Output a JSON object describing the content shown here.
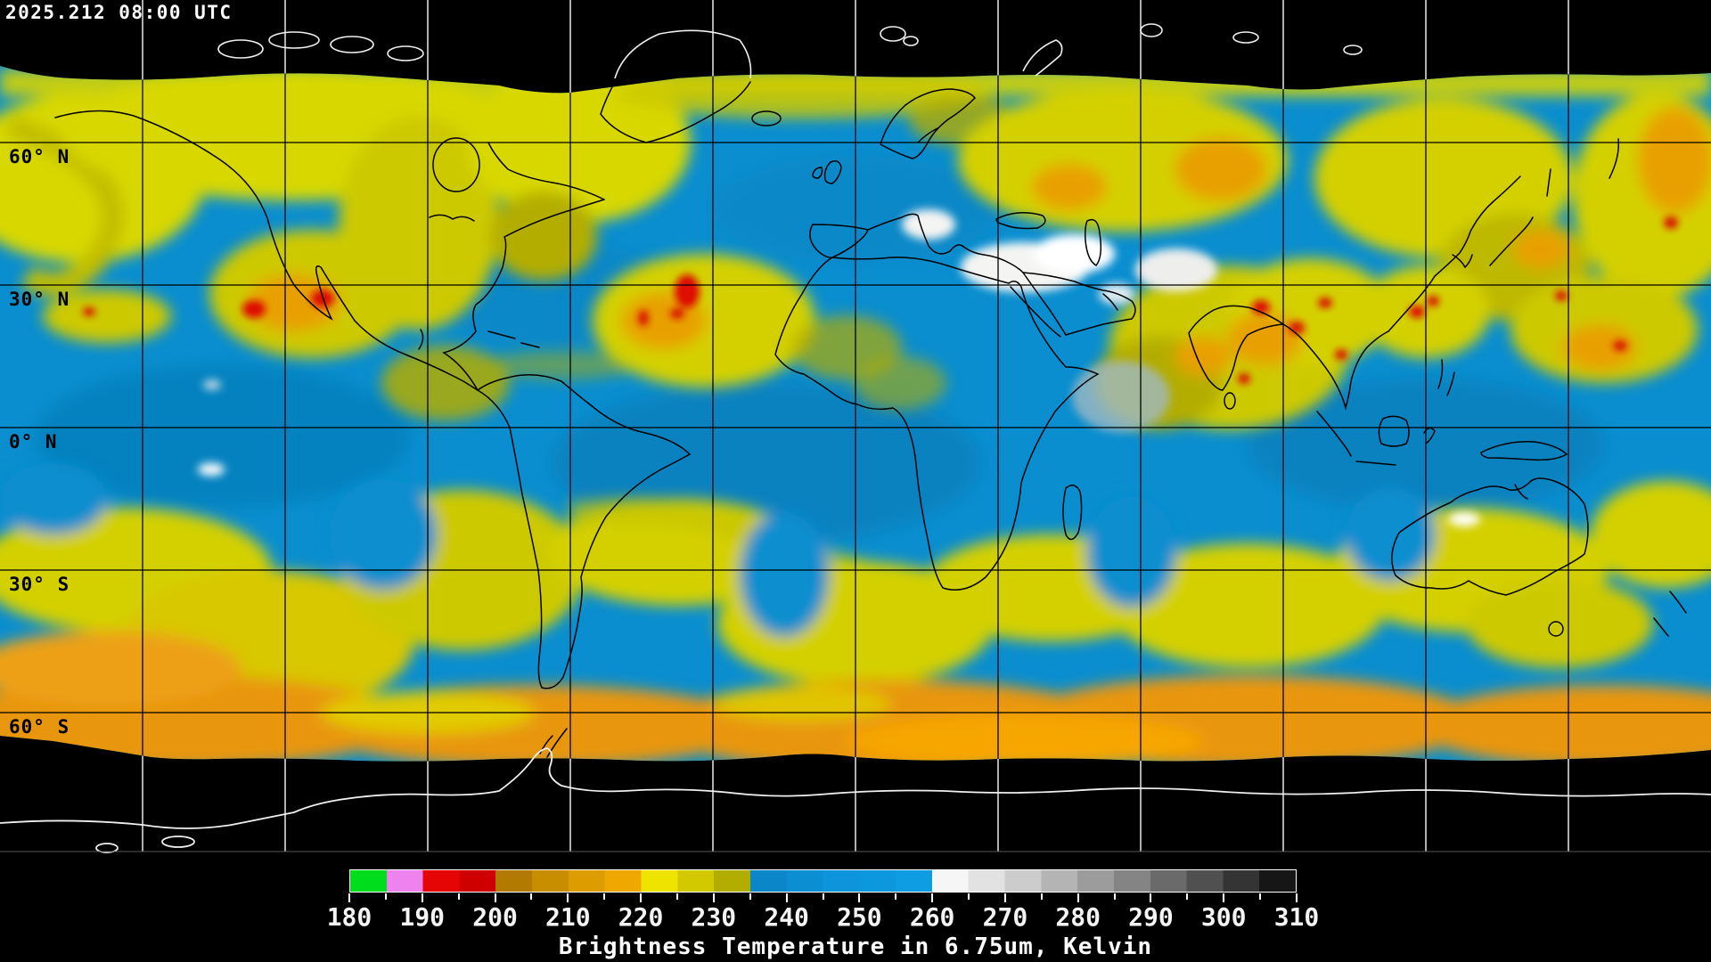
{
  "header": {
    "timestamp": "2025.212 08:00 UTC"
  },
  "map": {
    "projection": "equirectangular",
    "graticule_spacing_deg": 30,
    "latitude_labels": [
      {
        "label": "60° N",
        "lat": 60
      },
      {
        "label": "30° N",
        "lat": 30
      },
      {
        "label": "0° N",
        "lat": 0
      },
      {
        "label": "30° S",
        "lat": -30
      },
      {
        "label": "60° S",
        "lat": -60
      }
    ],
    "grid_color_over_data": "#000000",
    "grid_color_over_void": "#e8e8e8",
    "void_color": "#000000",
    "base_data_color": "#0a8ecf"
  },
  "colorbar": {
    "caption": "Brightness Temperature in 6.75um, Kelvin",
    "unit": "Kelvin",
    "min": 180,
    "max": 310,
    "major_tick_step": 10,
    "minor_tick_step": 5,
    "tick_labels": [
      "180",
      "190",
      "200",
      "210",
      "220",
      "230",
      "240",
      "250",
      "260",
      "270",
      "280",
      "290",
      "300",
      "310"
    ],
    "segments": [
      {
        "from": 180,
        "color": "#00dd1c"
      },
      {
        "from": 185,
        "color": "#ee82ee"
      },
      {
        "from": 190,
        "color": "#e60505"
      },
      {
        "from": 195,
        "color": "#cf0000"
      },
      {
        "from": 200,
        "color": "#b27a00"
      },
      {
        "from": 205,
        "color": "#c88e00"
      },
      {
        "from": 210,
        "color": "#dd9c00"
      },
      {
        "from": 215,
        "color": "#efa800"
      },
      {
        "from": 220,
        "color": "#efe400"
      },
      {
        "from": 225,
        "color": "#d2c900"
      },
      {
        "from": 230,
        "color": "#b3ad00"
      },
      {
        "from": 235,
        "color": "#0b86c8"
      },
      {
        "from": 240,
        "color": "#0c8ed2"
      },
      {
        "from": 245,
        "color": "#0d94da"
      },
      {
        "from": 250,
        "color": "#0d98de"
      },
      {
        "from": 255,
        "color": "#0e9ce2"
      },
      {
        "from": 260,
        "color": "#f6f6f6"
      },
      {
        "from": 265,
        "color": "#e2e2e2"
      },
      {
        "from": 270,
        "color": "#cccccc"
      },
      {
        "from": 275,
        "color": "#b4b4b4"
      },
      {
        "from": 280,
        "color": "#9c9c9c"
      },
      {
        "from": 285,
        "color": "#848484"
      },
      {
        "from": 290,
        "color": "#6a6a6a"
      },
      {
        "from": 295,
        "color": "#505050"
      },
      {
        "from": 300,
        "color": "#343434"
      },
      {
        "from": 305,
        "color": "#161616"
      }
    ]
  }
}
